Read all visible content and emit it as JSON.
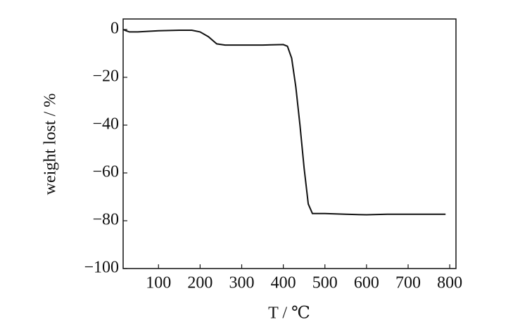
{
  "chart_data": {
    "type": "line",
    "x_label": "T / ℃",
    "y_label": "weight lost / %",
    "xlim": [
      15,
      815
    ],
    "ylim": [
      -100,
      4.4
    ],
    "xticks": [
      100,
      200,
      300,
      400,
      500,
      600,
      700,
      800
    ],
    "yticks": [
      0,
      {
        "value": -20,
        "label": "−20"
      },
      {
        "value": -40,
        "label": "−40"
      },
      {
        "value": -60,
        "label": "−60"
      },
      {
        "value": -80,
        "label": "−80"
      },
      {
        "value": -100,
        "label": "−100"
      }
    ],
    "series": [
      {
        "color": "#111111",
        "x": [
          15,
          22,
          30,
          50,
          100,
          150,
          180,
          200,
          220,
          240,
          260,
          300,
          350,
          400,
          410,
          420,
          430,
          440,
          450,
          460,
          470,
          475,
          500,
          550,
          600,
          650,
          700,
          750,
          790
        ],
        "values": [
          0,
          -0.5,
          -1,
          -1,
          -0.5,
          -0.3,
          -0.3,
          -1,
          -3,
          -6,
          -6.5,
          -6.5,
          -6.5,
          -6.3,
          -7,
          -12,
          -24,
          -40,
          -58,
          -73,
          -77,
          -77,
          -77,
          -77.3,
          -77.5,
          -77.3,
          -77.3,
          -77.3,
          -77.3
        ]
      }
    ]
  }
}
